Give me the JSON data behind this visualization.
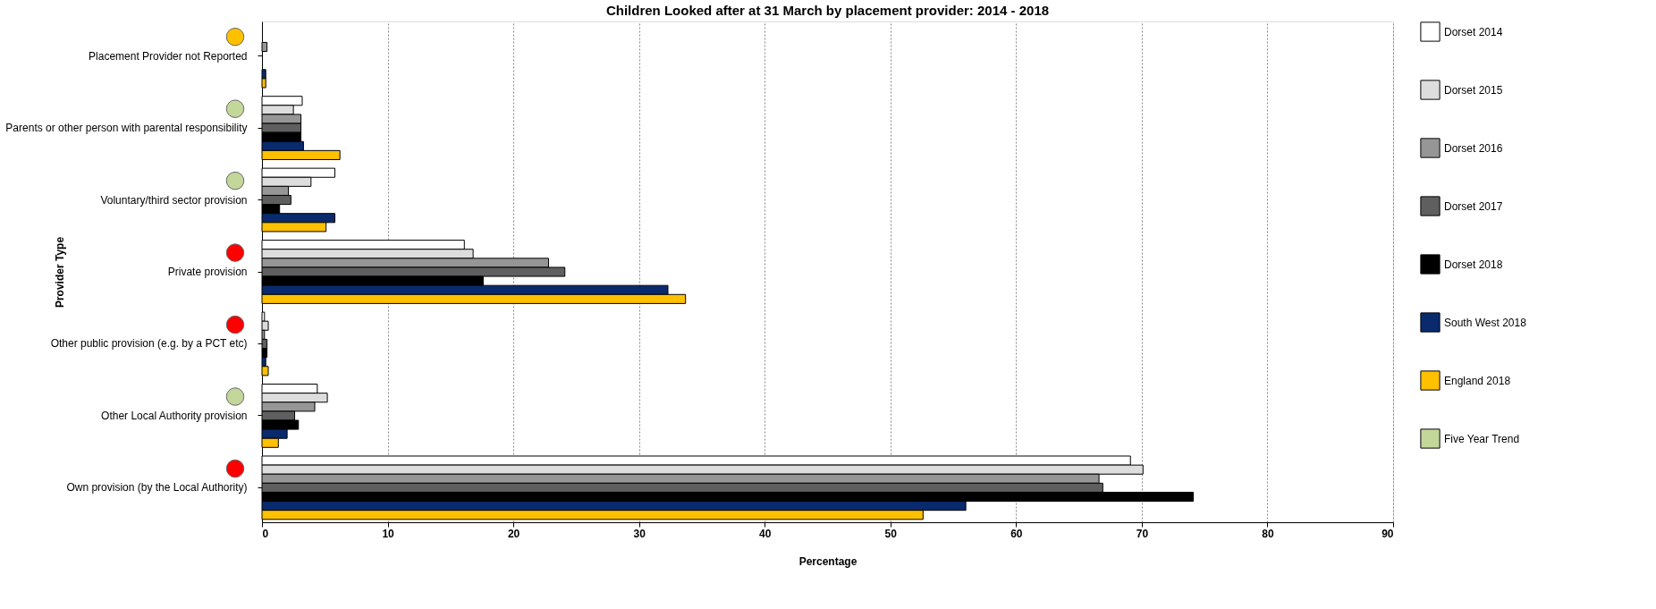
{
  "chart_data": {
    "type": "bar",
    "orientation": "horizontal",
    "title": "Children Looked after at 31 March by placement provider: 2014 - 2018",
    "xlabel": "Percentage",
    "ylabel": "Provider Type",
    "categories": [
      "Placement Provider not Reported",
      "Parents or other person with parental responsibility",
      "Voluntary/third sector provision",
      "Private provision",
      "Other public provision (e.g. by a PCT etc)",
      "Other Local Authority provision",
      "Own provision (by the Local Authority)"
    ],
    "series": [
      {
        "name": "Dorset 2014",
        "color": "#ffffff",
        "values": [
          null,
          3.2,
          5.8,
          16.1,
          0.2,
          4.4,
          69.1
        ]
      },
      {
        "name": "Dorset 2015",
        "color": "#dddddd",
        "values": [
          null,
          2.5,
          3.9,
          16.8,
          0.5,
          5.2,
          70.1
        ]
      },
      {
        "name": "Dorset 2016",
        "color": "#969696",
        "values": [
          0.4,
          3.1,
          2.1,
          22.8,
          0.2,
          4.2,
          66.6
        ]
      },
      {
        "name": "Dorset 2017",
        "color": "#5f5f5f",
        "values": [
          null,
          3.1,
          2.3,
          24.1,
          0.4,
          2.6,
          66.9
        ]
      },
      {
        "name": "Dorset 2018",
        "color": "#000000",
        "values": [
          null,
          3.1,
          1.4,
          17.6,
          0.4,
          2.9,
          74.1
        ]
      },
      {
        "name": "South West 2018",
        "color": "#0a2a6e",
        "values": [
          0.3,
          3.3,
          5.8,
          32.3,
          0.3,
          2.0,
          56.0
        ]
      },
      {
        "name": "England 2018",
        "color": "#ffc000",
        "values": [
          0.3,
          6.2,
          5.1,
          33.7,
          0.5,
          1.3,
          52.6
        ]
      },
      {
        "name": "Five Year Trend",
        "type": "scatter",
        "color": "#c4d79b",
        "marker": "circle",
        "colors": [
          "#ffc000",
          "#c4d79b",
          "#c4d79b",
          "#ff0000",
          "#ff0000",
          "#c4d79b",
          "#ff0000"
        ],
        "values": [
          null,
          null,
          null,
          null,
          null,
          null,
          null
        ]
      }
    ],
    "xlim": [
      0,
      90
    ],
    "xticks": [
      0,
      10,
      20,
      30,
      40,
      50,
      60,
      70,
      80,
      90
    ],
    "grid": "x",
    "legend": "right"
  }
}
